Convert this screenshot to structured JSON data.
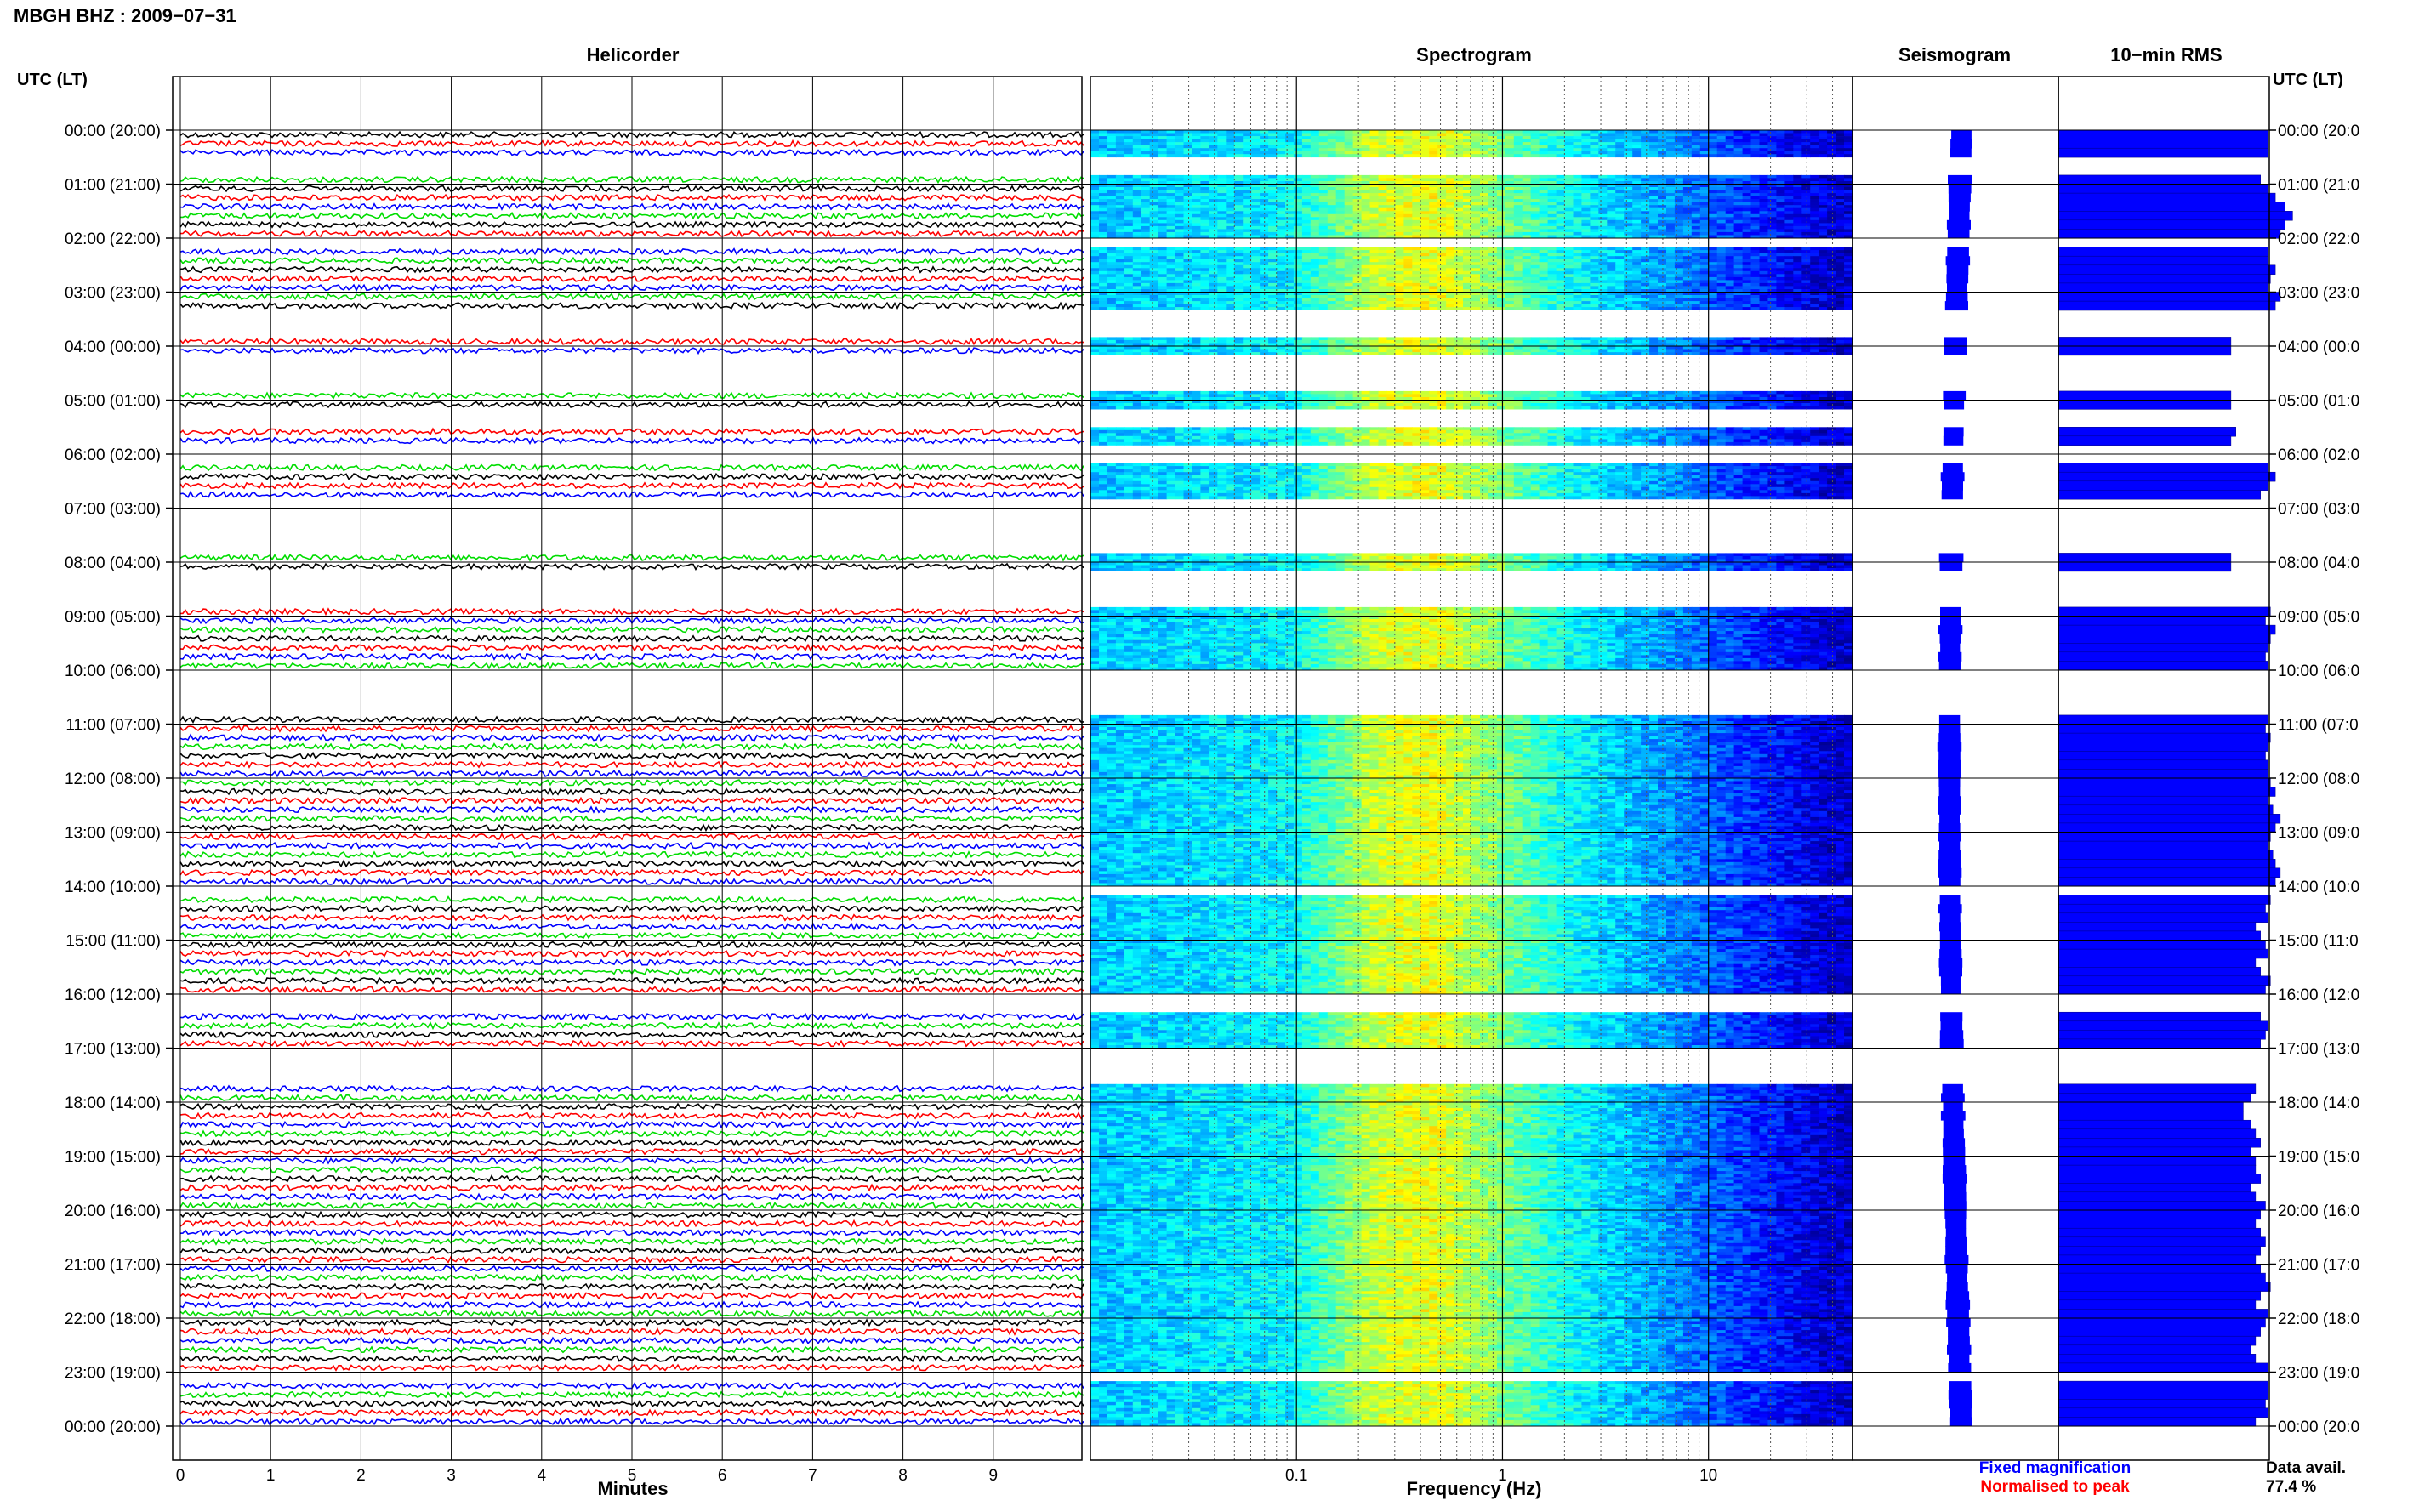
{
  "station_title": "MBGH BHZ : 2009−07−31",
  "left_axis_label": "UTC (LT)",
  "right_axis_label": "UTC (LT)",
  "panels": {
    "helicorder": "Helicorder",
    "spectrogram": "Spectrogram",
    "seismogram": "Seismogram",
    "rms": "10−min RMS"
  },
  "x_labels": {
    "helicorder": "Minutes",
    "spectrogram": "Frequency (Hz)"
  },
  "legend": {
    "fixed": "Fixed magnification",
    "normalised": "Normalised to peak",
    "fixed_color": "#0000ff",
    "normalised_color": "#ff0000"
  },
  "data_avail": {
    "label": "Data avail.",
    "value": "77.4 %"
  },
  "trace_colors": [
    "#000000",
    "#ff0000",
    "#0000ff",
    "#00dd00"
  ],
  "chart_data": {
    "type": "heatmap",
    "date": "2009-07-31",
    "station": "MBGH",
    "channel": "BHZ",
    "hour_labels": [
      "00:00 (20:00)",
      "01:00 (21:00)",
      "02:00 (22:00)",
      "03:00 (23:00)",
      "04:00 (00:00)",
      "05:00 (01:00)",
      "06:00 (02:00)",
      "07:00 (03:00)",
      "08:00 (04:00)",
      "09:00 (05:00)",
      "10:00 (06:00)",
      "11:00 (07:00)",
      "12:00 (08:00)",
      "13:00 (09:00)",
      "14:00 (10:00)",
      "15:00 (11:00)",
      "16:00 (12:00)",
      "17:00 (13:00)",
      "18:00 (14:00)",
      "19:00 (15:00)",
      "20:00 (16:00)",
      "21:00 (17:00)",
      "22:00 (18:00)",
      "23:00 (19:00)",
      "00:00 (20:00)"
    ],
    "right_hour_labels": [
      "00:00 (20:0",
      "01:00 (21:0",
      "02:00 (22:0",
      "03:00 (23:0",
      "04:00 (00:0",
      "05:00 (01:0",
      "06:00 (02:0",
      "07:00 (03:0",
      "08:00 (04:0",
      "09:00 (05:0",
      "10:00 (06:0",
      "11:00 (07:0",
      "12:00 (08:0",
      "13:00 (09:0",
      "14:00 (10:0",
      "15:00 (11:0",
      "16:00 (12:0",
      "17:00 (13:0",
      "18:00 (14:0",
      "19:00 (15:0",
      "20:00 (16:0",
      "21:00 (17:0",
      "22:00 (18:0",
      "23:00 (19:0",
      "00:00 (20:0"
    ],
    "minutes_ticks": [
      0,
      1,
      2,
      3,
      4,
      5,
      6,
      7,
      8,
      9
    ],
    "minutes_range": [
      0,
      10
    ],
    "frequency_ticks": [
      0.1,
      1,
      10
    ],
    "frequency_range": [
      0.01,
      50
    ],
    "frequency_scale": "log",
    "segments_per_hour": 6,
    "available_segments": [
      [
        0.0,
        0.5
      ],
      [
        0.83,
        2.0
      ],
      [
        2.17,
        3.33
      ],
      [
        3.83,
        4.17
      ],
      [
        4.83,
        5.17
      ],
      [
        5.5,
        5.83
      ],
      [
        6.17,
        6.83
      ],
      [
        7.83,
        8.17
      ],
      [
        8.83,
        10.0
      ],
      [
        10.83,
        14.0
      ],
      [
        14.17,
        16.0
      ],
      [
        16.33,
        17.0
      ],
      [
        17.67,
        23.0
      ],
      [
        23.17,
        24.0
      ]
    ],
    "partial_segments": [
      {
        "start": 13.83,
        "end_minute": 9.0
      },
      {
        "start": 14.0,
        "start_minute": 3.6
      }
    ],
    "rms_relative": [
      0.85,
      0.85,
      0.85,
      0.82,
      0.85,
      0.88,
      0.92,
      0.95,
      0.92,
      0.9,
      0.85,
      0.85,
      0.88,
      0.86,
      0.85,
      0.9,
      0.88,
      0.7,
      0.7,
      0.7,
      0.7,
      0.72,
      0.7,
      0.85,
      0.88,
      0.85,
      0.82,
      0.7,
      0.7,
      0.86,
      0.84,
      0.88,
      0.86,
      0.85,
      0.84,
      0.85,
      0.85,
      0.84,
      0.86,
      0.85,
      0.84,
      0.85,
      0.85,
      0.86,
      0.88,
      0.85,
      0.87,
      0.9,
      0.88,
      0.86,
      0.85,
      0.87,
      0.88,
      0.9,
      0.88,
      0.86,
      0.84,
      0.85,
      0.8,
      0.82,
      0.84,
      0.85,
      0.8,
      0.82,
      0.86,
      0.84,
      0.82,
      0.85,
      0.84,
      0.82,
      0.8,
      0.78,
      0.75,
      0.75,
      0.78,
      0.8,
      0.82,
      0.78,
      0.8,
      0.8,
      0.82,
      0.78,
      0.8,
      0.84,
      0.82,
      0.8,
      0.82,
      0.84,
      0.82,
      0.8,
      0.82,
      0.84,
      0.86,
      0.82,
      0.8,
      0.85,
      0.84,
      0.82,
      0.8,
      0.78,
      0.8,
      0.85,
      0.85,
      0.85,
      0.84,
      0.85
    ]
  }
}
